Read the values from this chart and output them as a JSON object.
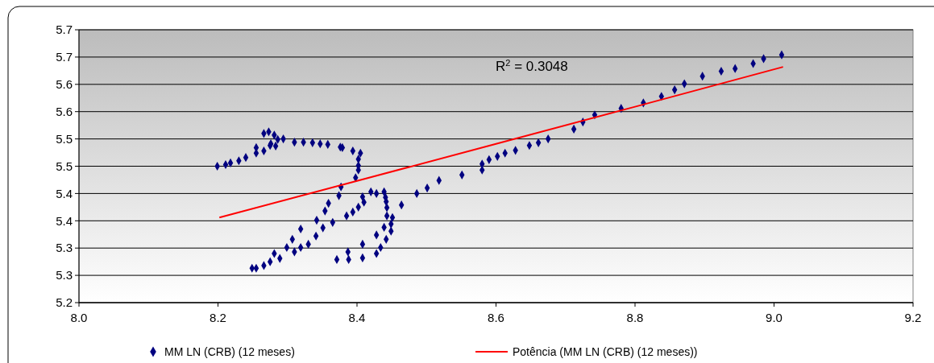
{
  "chart_data": {
    "type": "scatter",
    "annotations": [
      "R$^{2}$ = 0.3048"
    ],
    "xlim": [
      8.0,
      9.2
    ],
    "xticks": [
      {
        "value": 8.0,
        "label": "8.0"
      },
      {
        "value": 8.2,
        "label": "8.2"
      },
      {
        "value": 8.4,
        "label": "8.4"
      },
      {
        "value": 8.6,
        "label": "8.6"
      },
      {
        "value": 8.8,
        "label": "8.8"
      },
      {
        "value": 9.0,
        "label": "9.0"
      },
      {
        "value": 9.2,
        "label": "9.2"
      }
    ],
    "ylim": [
      5.2,
      5.7
    ],
    "yticks": [
      {
        "value": 5.2,
        "label": "5.2"
      },
      {
        "value": 5.25,
        "label": "5.3"
      },
      {
        "value": 5.3,
        "label": "5.3"
      },
      {
        "value": 5.35,
        "label": "5.4"
      },
      {
        "value": 5.4,
        "label": "5.4"
      },
      {
        "value": 5.45,
        "label": "5.5"
      },
      {
        "value": 5.5,
        "label": "5.5"
      },
      {
        "value": 5.55,
        "label": "5.6"
      },
      {
        "value": 5.6,
        "label": "5.6"
      },
      {
        "value": 5.65,
        "label": "5.7"
      },
      {
        "value": 5.7,
        "label": "5.7"
      }
    ],
    "grid": "y",
    "legend": "bottom",
    "marker": "diamond",
    "series": [
      {
        "name": "MM LN (CRB) (12 meses)",
        "color": "#000080",
        "x": [
          8.199,
          8.211,
          8.218,
          8.23,
          8.24,
          8.255,
          8.266,
          8.283,
          8.255,
          8.275,
          8.266,
          8.273,
          8.281,
          8.286,
          8.294,
          8.276,
          8.31,
          8.323,
          8.336,
          8.347,
          8.358,
          8.376,
          8.379,
          8.394,
          8.405,
          8.402,
          8.402,
          8.402,
          8.398,
          8.377,
          8.374,
          8.359,
          8.354,
          8.342,
          8.319,
          8.307,
          8.299,
          8.281,
          8.289,
          8.275,
          8.266,
          8.255,
          8.249,
          8.31,
          8.319,
          8.33,
          8.341,
          8.351,
          8.365,
          8.385,
          8.394,
          8.402,
          8.41,
          8.408,
          8.42,
          8.428,
          8.439,
          8.441,
          8.442,
          8.443,
          8.443,
          8.451,
          8.449,
          8.439,
          8.449,
          8.428,
          8.442,
          8.434,
          8.428,
          8.408,
          8.408,
          8.387,
          8.388,
          8.371,
          8.464,
          8.486,
          8.501,
          8.518,
          8.551,
          8.58,
          8.58,
          8.59,
          8.602,
          8.613,
          8.628,
          8.648,
          8.661,
          8.675,
          8.712,
          8.725,
          8.742,
          8.78,
          8.812,
          8.838,
          8.857,
          8.871,
          8.897,
          8.924,
          8.944,
          8.97,
          8.985,
          9.011
        ],
        "values": [
          5.45,
          5.453,
          5.456,
          5.46,
          5.466,
          5.474,
          5.478,
          5.487,
          5.484,
          5.488,
          5.51,
          5.513,
          5.507,
          5.499,
          5.5,
          5.491,
          5.494,
          5.494,
          5.493,
          5.491,
          5.49,
          5.485,
          5.484,
          5.478,
          5.474,
          5.463,
          5.451,
          5.443,
          5.429,
          5.412,
          5.396,
          5.382,
          5.368,
          5.351,
          5.335,
          5.316,
          5.301,
          5.29,
          5.281,
          5.275,
          5.268,
          5.263,
          5.263,
          5.293,
          5.301,
          5.307,
          5.322,
          5.337,
          5.347,
          5.359,
          5.366,
          5.375,
          5.384,
          5.394,
          5.403,
          5.4,
          5.403,
          5.393,
          5.385,
          5.374,
          5.359,
          5.356,
          5.344,
          5.338,
          5.331,
          5.324,
          5.316,
          5.301,
          5.29,
          5.307,
          5.282,
          5.293,
          5.279,
          5.279,
          5.379,
          5.4,
          5.41,
          5.424,
          5.434,
          5.443,
          5.454,
          5.462,
          5.468,
          5.474,
          5.479,
          5.488,
          5.493,
          5.5,
          5.518,
          5.531,
          5.544,
          5.556,
          5.566,
          5.578,
          5.59,
          5.601,
          5.615,
          5.624,
          5.629,
          5.638,
          5.647,
          5.654
        ]
      },
      {
        "name": "Potência (MM LN (CRB) (12 meses))",
        "color": "#ff0000",
        "type": "line",
        "marker": "none",
        "x": [
          8.202,
          8.4,
          8.6,
          8.8,
          9.013
        ],
        "values": [
          5.356,
          5.423,
          5.491,
          5.559,
          5.632
        ]
      }
    ]
  }
}
